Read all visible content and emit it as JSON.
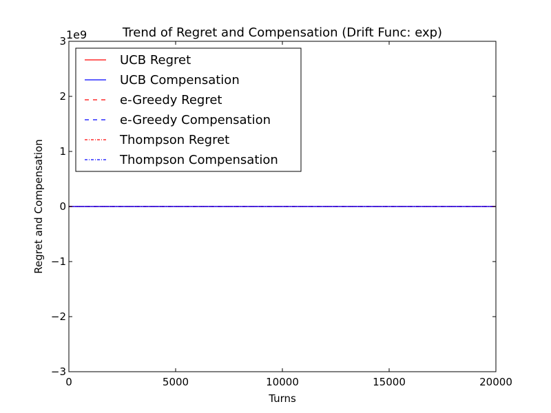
{
  "chart_data": {
    "type": "line",
    "title": "Trend of Regret and Compensation (Drift Func: exp)",
    "xlabel": "Turns",
    "ylabel": "Regret and Compensation",
    "y_scale_label": "1e9",
    "xlim": [
      0,
      20000
    ],
    "ylim": [
      -3,
      3
    ],
    "x_ticks": [
      0,
      5000,
      10000,
      15000,
      20000
    ],
    "x_tick_labels": [
      "0",
      "5000",
      "10000",
      "15000",
      "20000"
    ],
    "y_ticks": [
      -3,
      -2,
      -1,
      0,
      1,
      2,
      3
    ],
    "y_tick_labels": [
      "−3",
      "−2",
      "−1",
      "0",
      "1",
      "2",
      "3"
    ],
    "grid": false,
    "legend_position": "top-left",
    "series": [
      {
        "name": "UCB Regret",
        "color": "#ff0000",
        "style": "solid",
        "x": [
          0,
          20000
        ],
        "y": [
          0,
          0
        ]
      },
      {
        "name": "UCB Compensation",
        "color": "#0000ff",
        "style": "solid",
        "x": [
          0,
          20000
        ],
        "y": [
          0,
          0
        ]
      },
      {
        "name": "e-Greedy Regret",
        "color": "#ff0000",
        "style": "dashed",
        "x": [
          0,
          20000
        ],
        "y": [
          0,
          0
        ]
      },
      {
        "name": "e-Greedy Compensation",
        "color": "#0000ff",
        "style": "dashed",
        "x": [
          0,
          20000
        ],
        "y": [
          0,
          0
        ]
      },
      {
        "name": "Thompson Regret",
        "color": "#ff0000",
        "style": "dashdot",
        "x": [
          0,
          20000
        ],
        "y": [
          0,
          0
        ]
      },
      {
        "name": "Thompson Compensation",
        "color": "#0000ff",
        "style": "dashdot",
        "x": [
          0,
          20000
        ],
        "y": [
          0,
          0
        ]
      }
    ]
  }
}
